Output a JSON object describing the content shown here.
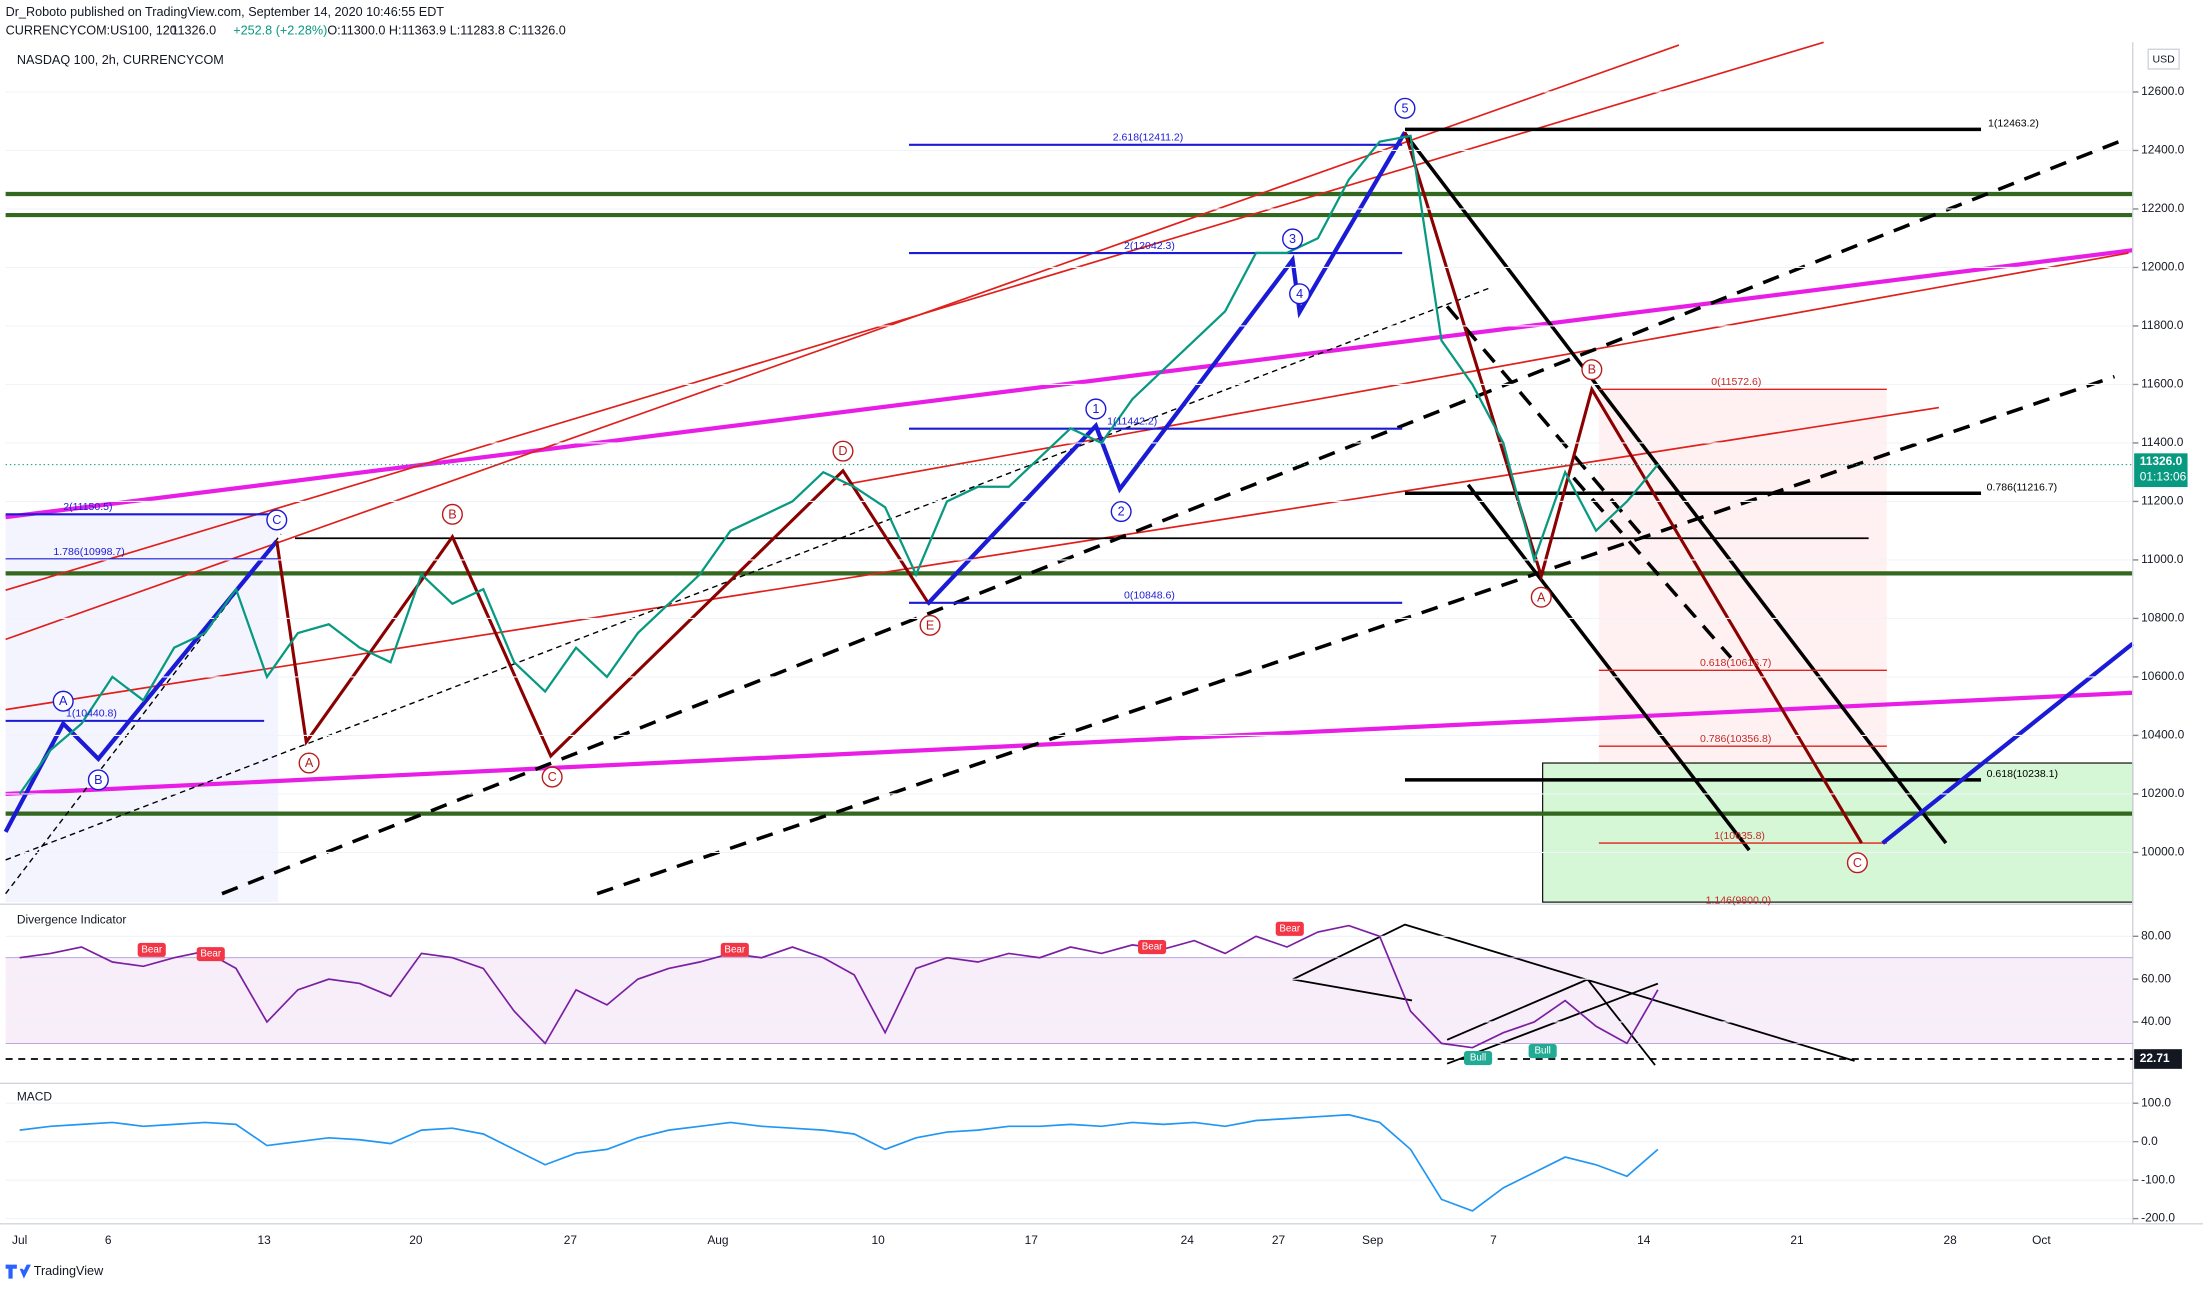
{
  "header": {
    "publisher": "Dr_Roboto published on TradingView.com, September 14, 2020 10:46:55 EDT",
    "symbol": "CURRENCYCOM:US100, 120",
    "last": "11326.0",
    "change": "+252.8 (+2.28%)",
    "ohlc": "O:11300.0 H:11363.9 L:11283.8 C:11326.0"
  },
  "chart_data": [
    {
      "type": "line",
      "title": "NASDAQ 100, 2h, CURRENCYCOM",
      "currency": "USD",
      "color": "#089981",
      "xtick_labels": [
        "Jul",
        "6",
        "13",
        "20",
        "27",
        "Aug",
        "10",
        "17",
        "24",
        "27",
        "Sep",
        "7",
        "14",
        "21",
        "28",
        "Oct"
      ],
      "values": [
        10200,
        10350,
        10440,
        10600,
        10520,
        10700,
        10750,
        10900,
        10600,
        10750,
        10780,
        10700,
        10650,
        10950,
        10850,
        10900,
        10650,
        10550,
        10700,
        10600,
        10750,
        10850,
        10950,
        11100,
        11150,
        11200,
        11300,
        11250,
        11180,
        10950,
        11200,
        11250,
        11250,
        11350,
        11450,
        11400,
        11550,
        11650,
        11750,
        11850,
        12050,
        12050,
        12100,
        12300,
        12430,
        12450,
        11750,
        11600,
        11400,
        11000,
        11300,
        11100,
        11200,
        11326
      ],
      "ylim": [
        9830,
        12770
      ],
      "yticks": [
        {
          "value": 10000,
          "label": "10000.0"
        },
        {
          "value": 10200,
          "label": "10200.0"
        },
        {
          "value": 10400,
          "label": "10400.0"
        },
        {
          "value": 10600,
          "label": "10600.0"
        },
        {
          "value": 10800,
          "label": "10800.0"
        },
        {
          "value": 11000,
          "label": "11000.0"
        },
        {
          "value": 11200,
          "label": "11200.0"
        },
        {
          "value": 11400,
          "label": "11400.0"
        },
        {
          "value": 11600,
          "label": "11600.0"
        },
        {
          "value": 11800,
          "label": "11800.0"
        },
        {
          "value": 12000,
          "label": "12000.0"
        },
        {
          "value": 12200,
          "label": "12200.0"
        },
        {
          "value": 12400,
          "label": "12400.0"
        },
        {
          "value": 12600,
          "label": "12600.0"
        }
      ],
      "last_label": "11326.0",
      "countdown": "01:13:06",
      "annotations": [
        "1(12463.2)",
        "2.618(12411.2)",
        "2(12042.3)",
        "1(11442.2)",
        "0(10848.6)",
        "2(11150.5)",
        "1.786(10998.7)",
        "1(10440.8)",
        "0(11572.6)",
        "0.786(11216.7)",
        "0.618(10616.7)",
        "0.786(10356.8)",
        "0.618(10238.1)",
        "1(10035.8)",
        "1.146(9800.0)"
      ],
      "waves": [
        "5",
        "3",
        "4",
        "1",
        "2",
        "A",
        "B",
        "C",
        "A",
        "B",
        "C",
        "D",
        "E",
        "A",
        "B",
        "C"
      ]
    },
    {
      "type": "line",
      "title": "Divergence Indicator",
      "color": "#7b1fa2",
      "values": [
        70,
        72,
        75,
        68,
        66,
        70,
        73,
        65,
        40,
        55,
        60,
        58,
        52,
        72,
        70,
        65,
        45,
        30,
        55,
        48,
        60,
        65,
        68,
        72,
        70,
        75,
        70,
        62,
        35,
        65,
        70,
        68,
        72,
        70,
        75,
        72,
        76,
        74,
        78,
        72,
        80,
        75,
        82,
        85,
        80,
        45,
        30,
        28,
        35,
        40,
        50,
        38,
        30,
        55
      ],
      "ylim": [
        12,
        94
      ],
      "yticks": [
        {
          "value": 40,
          "label": "40.00"
        },
        {
          "value": 60,
          "label": "60.00"
        },
        {
          "value": 80,
          "label": "80.00"
        }
      ],
      "band": [
        30,
        70
      ],
      "level": 22.71,
      "level_label": "22.71",
      "annotations": [
        "Bear",
        "Bear",
        "Bear",
        "Bear",
        "Bear",
        "Bull",
        "Bull"
      ]
    },
    {
      "type": "line",
      "title": "MACD",
      "color": "#2196f3",
      "values": [
        30,
        40,
        45,
        50,
        40,
        45,
        50,
        45,
        -10,
        0,
        10,
        5,
        -5,
        30,
        35,
        20,
        -20,
        -60,
        -30,
        -20,
        10,
        30,
        40,
        50,
        40,
        35,
        30,
        20,
        -20,
        10,
        25,
        30,
        40,
        40,
        45,
        40,
        50,
        45,
        50,
        40,
        55,
        60,
        65,
        70,
        50,
        -20,
        -150,
        -180,
        -120,
        -80,
        -40,
        -60,
        -90,
        -20
      ],
      "ylim": [
        -210,
        148
      ],
      "yticks": [
        {
          "value": -200,
          "label": "-200.0"
        },
        {
          "value": -100,
          "label": "-100.0"
        },
        {
          "value": 0,
          "label": "0.0"
        },
        {
          "value": 100,
          "label": "100.0"
        }
      ]
    }
  ],
  "footer": {
    "brand": "TradingView"
  }
}
